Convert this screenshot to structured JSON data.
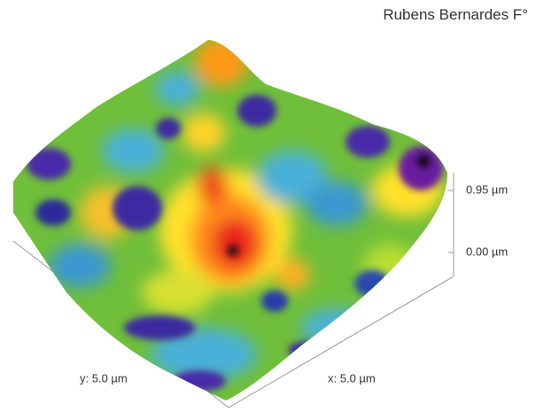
{
  "author": "Rubens Bernardes F°",
  "z_axis": {
    "max_label": "0.95 µm",
    "min_label": "0.00 µm"
  },
  "x_axis": {
    "label": "x: 5.0 µm"
  },
  "y_axis": {
    "label": "y: 5.0 µm"
  }
}
